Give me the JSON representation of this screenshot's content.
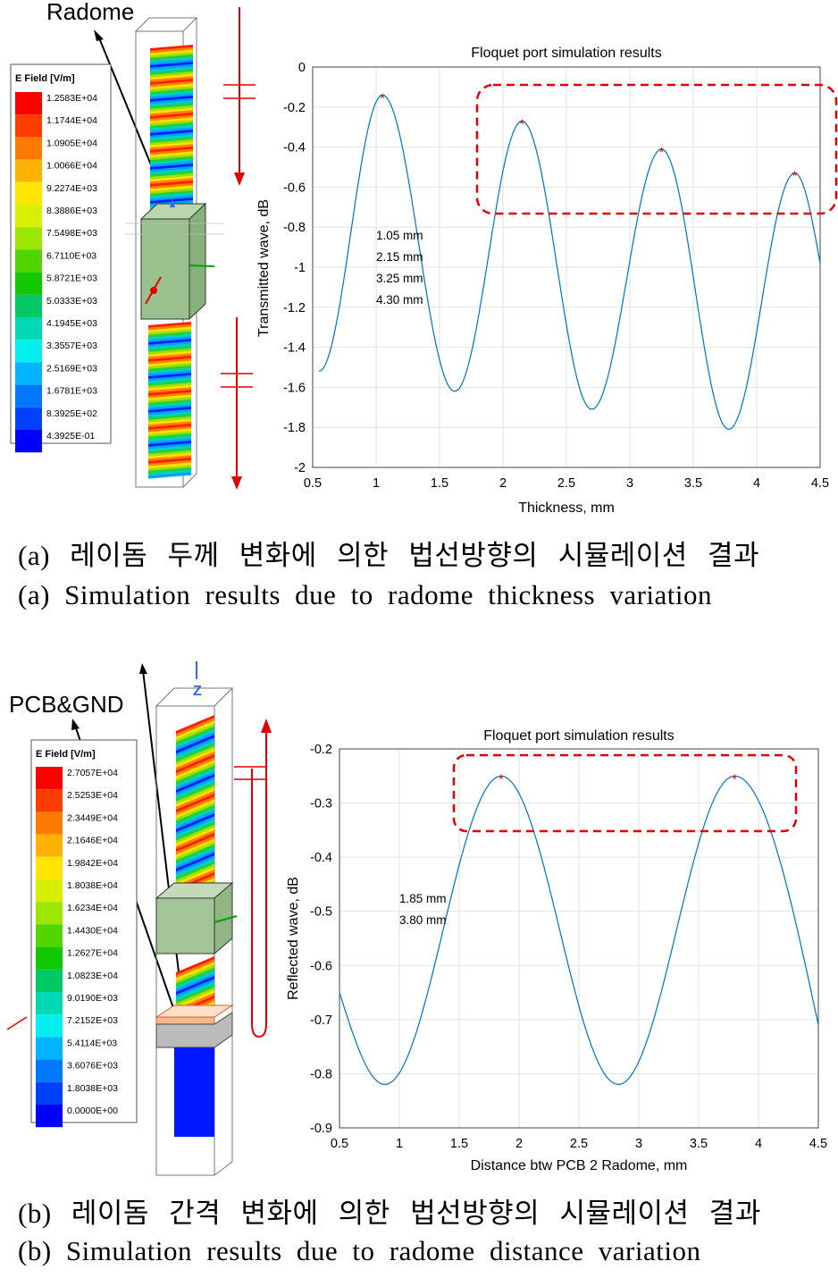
{
  "panel_a": {
    "radome_label": "Radome",
    "legend": {
      "title": "E Field [V/m]",
      "values": [
        "1.2583E+04",
        "1.1744E+04",
        "1.0905E+04",
        "1.0066E+04",
        "9.2274E+03",
        "8.3886E+03",
        "7.5498E+03",
        "6.7110E+03",
        "5.8721E+03",
        "5.0333E+03",
        "4.1945E+03",
        "3.3557E+03",
        "2.5169E+03",
        "1.6781E+03",
        "8.3925E+02",
        "4.3925E-01"
      ],
      "colors": [
        "#ff0000",
        "#ff3d00",
        "#ff7a00",
        "#ffb200",
        "#ffe600",
        "#d6f000",
        "#9ce600",
        "#52d500",
        "#12c800",
        "#00c864",
        "#00d9b4",
        "#00f0f0",
        "#00b4ff",
        "#0078ff",
        "#0040ff",
        "#0000ff"
      ]
    },
    "caption_ko": "(a) 레이돔 두께 변화에 의한 법선방향의 시뮬레이션 결과",
    "caption_en": "(a) Simulation results due to radome thickness variation"
  },
  "panel_b": {
    "pcb_label": "PCB&GND",
    "axis_label": "Z",
    "legend": {
      "title": "E Field [V/m]",
      "values": [
        "2.7057E+04",
        "2.5253E+04",
        "2.3449E+04",
        "2.1646E+04",
        "1.9842E+04",
        "1.8038E+04",
        "1.6234E+04",
        "1.4430E+04",
        "1.2627E+04",
        "1.0823E+04",
        "9.0190E+03",
        "7.2152E+03",
        "5.4114E+03",
        "3.6076E+03",
        "1.8038E+03",
        "0.0000E+00"
      ],
      "colors": [
        "#ff0000",
        "#ff3d00",
        "#ff7a00",
        "#ffb200",
        "#ffe600",
        "#d6f000",
        "#9ce600",
        "#52d500",
        "#12c800",
        "#00c864",
        "#00d9b4",
        "#00f0f0",
        "#00b4ff",
        "#0078ff",
        "#0040ff",
        "#0000ff"
      ]
    },
    "caption_ko": "(b) 레이돔 간격 변화에 의한 법선방향의 시뮬레이션 결과",
    "caption_en": "(b) Simulation results due to radome distance variation"
  },
  "chart_data": [
    {
      "type": "line",
      "title": "Floquet port simulation results",
      "xlabel": "Thickness, mm",
      "ylabel": "Transmitted wave, dB",
      "xlim": [
        0.5,
        4.5
      ],
      "ylim": [
        -2,
        0
      ],
      "xticks": [
        "0.5",
        "1",
        "1.5",
        "2",
        "2.5",
        "3",
        "3.5",
        "4",
        "4.5"
      ],
      "yticks": [
        "0",
        "-0.2",
        "-0.4",
        "-0.6",
        "-0.8",
        "-1",
        "-1.2",
        "-1.4",
        "-1.6",
        "-1.8",
        "-2"
      ],
      "grid": true,
      "line_color": "#0072bd",
      "peaks": [
        {
          "x": 1.05,
          "y": -0.14
        },
        {
          "x": 2.15,
          "y": -0.27
        },
        {
          "x": 3.25,
          "y": -0.41
        },
        {
          "x": 4.3,
          "y": -0.53
        }
      ],
      "troughs": [
        {
          "x": 0.55,
          "y": -1.52
        },
        {
          "x": 1.62,
          "y": -1.62
        },
        {
          "x": 2.7,
          "y": -1.71
        },
        {
          "x": 3.78,
          "y": -1.81
        }
      ],
      "end_point": {
        "x": 4.5,
        "y": -0.98
      },
      "annotations": [
        "1.05 mm",
        "2.15 mm",
        "3.25 mm",
        "4.30 mm"
      ]
    },
    {
      "type": "line",
      "title": "Floquet port simulation results",
      "xlabel": "Distance btw PCB 2 Radome, mm",
      "ylabel": "Reflected wave, dB",
      "xlim": [
        0.5,
        4.5
      ],
      "ylim": [
        -0.9,
        -0.2
      ],
      "xticks": [
        "0.5",
        "1",
        "1.5",
        "2",
        "2.5",
        "3",
        "3.5",
        "4",
        "4.5"
      ],
      "yticks": [
        "-0.2",
        "-0.3",
        "-0.4",
        "-0.5",
        "-0.6",
        "-0.7",
        "-0.8",
        "-0.9"
      ],
      "grid": true,
      "line_color": "#0072bd",
      "start_point": {
        "x": 0.5,
        "y": -0.65
      },
      "peaks": [
        {
          "x": 1.85,
          "y": -0.25
        },
        {
          "x": 3.8,
          "y": -0.25
        }
      ],
      "troughs": [
        {
          "x": 0.88,
          "y": -0.82
        },
        {
          "x": 2.83,
          "y": -0.82
        }
      ],
      "end_point": {
        "x": 4.5,
        "y": -0.71
      },
      "annotations": [
        "1.85 mm",
        "3.80 mm"
      ]
    }
  ]
}
